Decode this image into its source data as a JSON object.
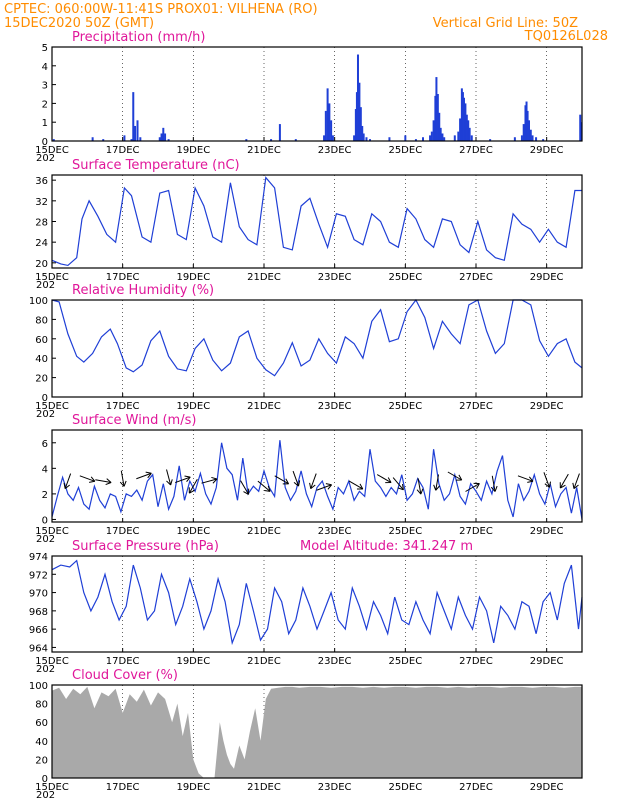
{
  "header": {
    "left_line1": "CPTEC:   060:00W-11:41S   PROX01: VILHENA (RO)",
    "left_line2": "15DEC2020 50Z (GMT)",
    "right_line1": "Vertical Grid Line: 50Z",
    "right_line2": "TQ0126L028"
  },
  "x_ticks": [
    "15DEC",
    "17DEC",
    "19DEC",
    "21DEC",
    "23DEC",
    "25DEC",
    "27DEC",
    "29DEC"
  ],
  "x_tick_sub": "202",
  "chart_data": [
    {
      "type": "bar",
      "title": "Precipitation (mm/h)",
      "ylim": [
        0,
        5
      ],
      "y_ticks": [
        0,
        1,
        2,
        3,
        4,
        5
      ],
      "x_range_days": [
        15,
        30
      ],
      "bars": [
        [
          15.05,
          0.1
        ],
        [
          16.15,
          0.2
        ],
        [
          16.45,
          0.1
        ],
        [
          17.05,
          0.3
        ],
        [
          17.25,
          0.1
        ],
        [
          17.3,
          2.6
        ],
        [
          17.35,
          0.8
        ],
        [
          17.42,
          1.1
        ],
        [
          17.5,
          0.2
        ],
        [
          18.05,
          0.2
        ],
        [
          18.1,
          0.4
        ],
        [
          18.15,
          0.7
        ],
        [
          18.2,
          0.4
        ],
        [
          18.3,
          0.1
        ],
        [
          20.5,
          0.1
        ],
        [
          21.2,
          0.1
        ],
        [
          21.45,
          0.9
        ],
        [
          21.9,
          0.1
        ],
        [
          22.7,
          0.3
        ],
        [
          22.75,
          1.6
        ],
        [
          22.8,
          2.8
        ],
        [
          22.85,
          2.0
        ],
        [
          22.9,
          1.1
        ],
        [
          22.95,
          0.3
        ],
        [
          23.55,
          0.3
        ],
        [
          23.6,
          1.7
        ],
        [
          23.63,
          2.6
        ],
        [
          23.66,
          4.6
        ],
        [
          23.7,
          3.1
        ],
        [
          23.74,
          1.8
        ],
        [
          23.78,
          0.8
        ],
        [
          23.82,
          0.4
        ],
        [
          23.9,
          0.2
        ],
        [
          24.0,
          0.1
        ],
        [
          24.55,
          0.2
        ],
        [
          25.0,
          0.3
        ],
        [
          25.3,
          0.1
        ],
        [
          25.5,
          0.2
        ],
        [
          25.7,
          0.3
        ],
        [
          25.75,
          0.5
        ],
        [
          25.8,
          1.1
        ],
        [
          25.85,
          2.4
        ],
        [
          25.88,
          3.4
        ],
        [
          25.92,
          2.5
        ],
        [
          25.96,
          1.5
        ],
        [
          26.0,
          0.7
        ],
        [
          26.05,
          0.4
        ],
        [
          26.1,
          0.2
        ],
        [
          26.4,
          0.3
        ],
        [
          26.5,
          0.5
        ],
        [
          26.55,
          1.2
        ],
        [
          26.6,
          2.8
        ],
        [
          26.63,
          2.6
        ],
        [
          26.66,
          2.3
        ],
        [
          26.7,
          2.0
        ],
        [
          26.74,
          1.4
        ],
        [
          26.78,
          1.1
        ],
        [
          26.82,
          0.7
        ],
        [
          26.88,
          0.3
        ],
        [
          27.4,
          0.1
        ],
        [
          28.1,
          0.2
        ],
        [
          28.3,
          0.3
        ],
        [
          28.35,
          0.9
        ],
        [
          28.4,
          1.9
        ],
        [
          28.43,
          2.1
        ],
        [
          28.46,
          1.6
        ],
        [
          28.5,
          1.1
        ],
        [
          28.55,
          0.6
        ],
        [
          28.6,
          0.3
        ],
        [
          28.7,
          0.2
        ],
        [
          28.9,
          0.1
        ],
        [
          29.95,
          1.4
        ],
        [
          29.98,
          1.0
        ]
      ]
    },
    {
      "type": "line",
      "title": "Surface Temperature (nC)",
      "ylim": [
        19,
        37
      ],
      "y_ticks": [
        20,
        24,
        28,
        32,
        36
      ],
      "x_range_days": [
        15,
        30
      ],
      "x": [
        15.0,
        15.25,
        15.45,
        15.7,
        15.85,
        16.05,
        16.3,
        16.55,
        16.8,
        17.05,
        17.25,
        17.55,
        17.8,
        18.05,
        18.3,
        18.55,
        18.8,
        19.05,
        19.3,
        19.55,
        19.8,
        20.05,
        20.3,
        20.55,
        20.8,
        21.05,
        21.3,
        21.55,
        21.8,
        22.05,
        22.3,
        22.55,
        22.8,
        23.05,
        23.3,
        23.55,
        23.8,
        24.05,
        24.3,
        24.55,
        24.8,
        25.05,
        25.3,
        25.55,
        25.8,
        26.05,
        26.3,
        26.55,
        26.8,
        27.05,
        27.3,
        27.55,
        27.8,
        28.05,
        28.3,
        28.55,
        28.8,
        29.05,
        29.3,
        29.55,
        29.8,
        30.0
      ],
      "y": [
        20.5,
        19.8,
        19.5,
        21.0,
        28.5,
        32.0,
        29.0,
        25.5,
        24.0,
        34.5,
        33.0,
        25.0,
        24.0,
        33.5,
        34.0,
        25.5,
        24.5,
        34.5,
        31.0,
        25.0,
        24.0,
        35.5,
        27.0,
        24.5,
        23.5,
        36.5,
        34.5,
        23.0,
        22.5,
        31.0,
        32.5,
        27.5,
        23.0,
        29.5,
        29.0,
        24.5,
        23.5,
        29.5,
        28.0,
        24.0,
        23.0,
        30.5,
        28.5,
        24.5,
        23.0,
        28.5,
        28.0,
        23.5,
        22.0,
        28.0,
        22.5,
        21.0,
        20.5,
        29.5,
        27.5,
        26.5,
        24.0,
        26.5,
        24.0,
        23.0,
        34.0,
        34.0
      ]
    },
    {
      "type": "line",
      "title": "Relative Humidity (%)",
      "ylim": [
        0,
        100
      ],
      "y_ticks": [
        0,
        20,
        40,
        60,
        80,
        100
      ],
      "x_range_days": [
        15,
        30
      ],
      "x": [
        15.0,
        15.2,
        15.45,
        15.7,
        15.9,
        16.15,
        16.4,
        16.65,
        16.85,
        17.1,
        17.3,
        17.55,
        17.8,
        18.05,
        18.3,
        18.55,
        18.8,
        19.05,
        19.3,
        19.55,
        19.8,
        20.05,
        20.3,
        20.55,
        20.8,
        21.05,
        21.3,
        21.55,
        21.8,
        22.05,
        22.3,
        22.55,
        22.8,
        23.05,
        23.3,
        23.55,
        23.8,
        24.05,
        24.3,
        24.55,
        24.8,
        25.05,
        25.3,
        25.55,
        25.8,
        26.05,
        26.3,
        26.55,
        26.8,
        27.05,
        27.3,
        27.55,
        27.8,
        28.05,
        28.3,
        28.55,
        28.8,
        29.05,
        29.3,
        29.55,
        29.8,
        30.0
      ],
      "y": [
        100,
        98,
        65,
        42,
        36,
        45,
        62,
        70,
        55,
        30,
        26,
        33,
        58,
        68,
        42,
        29,
        27,
        50,
        60,
        38,
        27,
        35,
        62,
        68,
        40,
        28,
        22,
        35,
        56,
        32,
        38,
        60,
        45,
        35,
        62,
        55,
        40,
        78,
        90,
        57,
        60,
        88,
        100,
        82,
        50,
        78,
        65,
        55,
        95,
        100,
        68,
        45,
        55,
        100,
        100,
        95,
        58,
        42,
        55,
        60,
        36,
        30
      ]
    },
    {
      "type": "line",
      "title": "Surface Wind (m/s)",
      "ylim": [
        -0.2,
        7
      ],
      "y_ticks": [
        0,
        2,
        4,
        6
      ],
      "x_range_days": [
        15,
        30
      ],
      "x": [
        15.0,
        15.15,
        15.3,
        15.45,
        15.6,
        15.75,
        15.9,
        16.05,
        16.2,
        16.35,
        16.5,
        16.65,
        16.8,
        16.95,
        17.1,
        17.25,
        17.4,
        17.55,
        17.7,
        17.85,
        18.0,
        18.15,
        18.3,
        18.45,
        18.6,
        18.75,
        18.9,
        19.05,
        19.2,
        19.35,
        19.5,
        19.65,
        19.8,
        19.95,
        20.1,
        20.25,
        20.4,
        20.55,
        20.7,
        20.85,
        21.0,
        21.15,
        21.3,
        21.45,
        21.6,
        21.75,
        21.9,
        22.05,
        22.2,
        22.35,
        22.5,
        22.65,
        22.8,
        22.95,
        23.1,
        23.25,
        23.4,
        23.55,
        23.7,
        23.85,
        24.0,
        24.15,
        24.3,
        24.45,
        24.6,
        24.75,
        24.9,
        25.05,
        25.2,
        25.35,
        25.5,
        25.65,
        25.8,
        25.95,
        26.1,
        26.25,
        26.4,
        26.55,
        26.7,
        26.85,
        27.0,
        27.15,
        27.3,
        27.45,
        27.6,
        27.75,
        27.9,
        28.05,
        28.2,
        28.35,
        28.5,
        28.65,
        28.8,
        28.95,
        29.1,
        29.25,
        29.4,
        29.55,
        29.7,
        29.85,
        30.0
      ],
      "y": [
        0.2,
        1.8,
        3.3,
        2.0,
        1.5,
        2.5,
        1.2,
        0.8,
        2.6,
        1.5,
        0.9,
        2.0,
        1.8,
        0.6,
        2.0,
        1.8,
        2.3,
        1.5,
        3.0,
        3.5,
        1.0,
        2.8,
        0.8,
        1.8,
        4.2,
        1.5,
        3.0,
        2.2,
        3.6,
        2.0,
        1.2,
        2.5,
        6.0,
        4.0,
        3.5,
        1.5,
        4.8,
        2.0,
        2.6,
        2.2,
        3.8,
        2.5,
        1.8,
        6.2,
        2.5,
        1.5,
        2.2,
        3.8,
        2.0,
        1.0,
        2.5,
        3.0,
        1.8,
        0.8,
        2.5,
        2.0,
        3.0,
        1.5,
        2.2,
        1.8,
        5.5,
        3.0,
        2.5,
        1.8,
        2.5,
        2.0,
        3.5,
        1.5,
        2.0,
        3.2,
        2.5,
        0.8,
        5.5,
        2.8,
        1.5,
        2.0,
        3.5,
        1.8,
        1.2,
        2.8,
        2.2,
        1.5,
        3.0,
        2.0,
        3.8,
        5.0,
        1.5,
        0.2,
        2.8,
        1.5,
        2.2,
        3.5,
        2.0,
        1.2,
        2.8,
        1.0,
        2.0,
        2.5,
        0.5,
        2.5,
        0.0
      ]
    },
    {
      "type": "line",
      "title": "Surface Pressure (hPa)",
      "annotation": "Model Altitude: 341.247 m",
      "ylim": [
        963.5,
        974
      ],
      "y_ticks": [
        964,
        966,
        968,
        970,
        972,
        974
      ],
      "x_range_days": [
        15,
        30
      ],
      "x": [
        15.0,
        15.25,
        15.5,
        15.7,
        15.9,
        16.1,
        16.3,
        16.5,
        16.7,
        16.9,
        17.1,
        17.3,
        17.5,
        17.7,
        17.9,
        18.1,
        18.3,
        18.5,
        18.7,
        18.9,
        19.1,
        19.3,
        19.5,
        19.7,
        19.9,
        20.1,
        20.3,
        20.5,
        20.7,
        20.9,
        21.1,
        21.3,
        21.5,
        21.7,
        21.9,
        22.1,
        22.3,
        22.5,
        22.7,
        22.9,
        23.1,
        23.3,
        23.5,
        23.7,
        23.9,
        24.1,
        24.3,
        24.5,
        24.7,
        24.9,
        25.1,
        25.3,
        25.5,
        25.7,
        25.9,
        26.1,
        26.3,
        26.5,
        26.7,
        26.9,
        27.1,
        27.3,
        27.5,
        27.7,
        27.9,
        28.1,
        28.3,
        28.5,
        28.7,
        28.9,
        29.1,
        29.3,
        29.5,
        29.7,
        29.9,
        30.0
      ],
      "y": [
        972.5,
        973.0,
        972.8,
        973.5,
        970.0,
        968.0,
        969.5,
        972.0,
        969.0,
        967.0,
        968.5,
        973.0,
        970.5,
        967.0,
        968.0,
        972.0,
        970.0,
        966.5,
        968.5,
        971.5,
        969.0,
        966.0,
        968.0,
        971.5,
        969.0,
        964.5,
        966.5,
        971.0,
        968.0,
        964.8,
        966.0,
        970.5,
        969.0,
        965.5,
        967.0,
        970.5,
        968.5,
        966.0,
        968.0,
        970.0,
        967.0,
        966.0,
        970.5,
        968.5,
        966.0,
        969.0,
        967.5,
        965.5,
        969.5,
        967.0,
        966.5,
        969.0,
        967.0,
        965.5,
        970.0,
        968.0,
        966.0,
        969.5,
        967.5,
        966.0,
        969.5,
        968.0,
        964.5,
        968.5,
        967.5,
        966.0,
        969.0,
        968.5,
        965.5,
        969.0,
        970.0,
        967.0,
        971.0,
        973.0,
        966.0,
        969.5
      ]
    },
    {
      "type": "area",
      "title": "Cloud Cover (%)",
      "ylim": [
        0,
        100
      ],
      "y_ticks": [
        0,
        20,
        40,
        60,
        80,
        100
      ],
      "x_range_days": [
        15,
        30
      ],
      "x": [
        15.0,
        15.2,
        15.4,
        15.6,
        15.8,
        16.0,
        16.2,
        16.4,
        16.6,
        16.8,
        17.0,
        17.2,
        17.4,
        17.6,
        17.8,
        18.0,
        18.2,
        18.4,
        18.55,
        18.7,
        18.85,
        19.0,
        19.15,
        19.3,
        19.45,
        19.6,
        19.75,
        19.85,
        19.95,
        20.05,
        20.15,
        20.3,
        20.45,
        20.6,
        20.75,
        20.9,
        21.05,
        21.2,
        21.4,
        21.6,
        21.8,
        22.0,
        22.3,
        22.6,
        22.9,
        23.2,
        23.5,
        23.8,
        24.1,
        24.4,
        24.7,
        25.0,
        25.3,
        25.6,
        25.9,
        26.2,
        26.5,
        26.8,
        27.1,
        27.4,
        27.7,
        28.0,
        28.3,
        28.6,
        28.9,
        29.2,
        29.5,
        29.8,
        30.0
      ],
      "y": [
        94,
        97,
        85,
        96,
        90,
        98,
        75,
        92,
        88,
        96,
        70,
        90,
        82,
        95,
        78,
        92,
        85,
        60,
        80,
        45,
        70,
        20,
        5,
        0,
        0,
        0,
        60,
        40,
        25,
        15,
        10,
        35,
        20,
        50,
        75,
        40,
        85,
        96,
        97,
        98,
        98,
        97,
        98,
        98,
        97,
        98,
        98,
        97,
        98,
        97,
        98,
        98,
        97,
        98,
        98,
        97,
        98,
        97,
        98,
        98,
        97,
        98,
        98,
        97,
        98,
        98,
        97,
        98,
        98
      ]
    }
  ],
  "wind_arrows": [
    {
      "day": 15.45,
      "wind": 3.0,
      "angle": 110
    },
    {
      "day": 16.0,
      "wind": 3.2,
      "angle": 20
    },
    {
      "day": 16.45,
      "wind": 3.0,
      "angle": 10
    },
    {
      "day": 17.0,
      "wind": 3.2,
      "angle": 80
    },
    {
      "day": 17.6,
      "wind": 3.4,
      "angle": -20
    },
    {
      "day": 18.3,
      "wind": 3.3,
      "angle": 75
    },
    {
      "day": 18.7,
      "wind": 3.1,
      "angle": -20
    },
    {
      "day": 19.0,
      "wind": 2.6,
      "angle": 120
    },
    {
      "day": 19.45,
      "wind": 3.0,
      "angle": -15
    },
    {
      "day": 20.45,
      "wind": 2.5,
      "angle": 60
    },
    {
      "day": 21.0,
      "wind": 2.6,
      "angle": 40
    },
    {
      "day": 21.5,
      "wind": 3.1,
      "angle": 30
    },
    {
      "day": 21.9,
      "wind": 3.2,
      "angle": 70
    },
    {
      "day": 22.4,
      "wind": 3.0,
      "angle": 110
    },
    {
      "day": 22.7,
      "wind": 2.5,
      "angle": -20
    },
    {
      "day": 23.6,
      "wind": 2.7,
      "angle": 30
    },
    {
      "day": 24.4,
      "wind": 3.2,
      "angle": 30
    },
    {
      "day": 24.8,
      "wind": 2.8,
      "angle": 50
    },
    {
      "day": 25.4,
      "wind": 2.6,
      "angle": 80
    },
    {
      "day": 25.9,
      "wind": 2.9,
      "angle": 100
    },
    {
      "day": 26.4,
      "wind": 3.4,
      "angle": 30
    },
    {
      "day": 26.9,
      "wind": 2.5,
      "angle": -30
    },
    {
      "day": 27.5,
      "wind": 2.8,
      "angle": 80
    },
    {
      "day": 28.4,
      "wind": 3.2,
      "angle": 20
    },
    {
      "day": 29.0,
      "wind": 3.1,
      "angle": 70
    },
    {
      "day": 29.5,
      "wind": 3.0,
      "angle": 120
    },
    {
      "day": 29.85,
      "wind": 3.0,
      "angle": 110
    }
  ]
}
